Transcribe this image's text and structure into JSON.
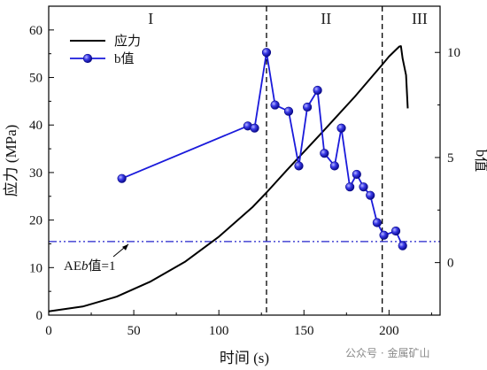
{
  "chart_data": {
    "type": "line",
    "xlabel": "时间 (s)",
    "ylabel_left": "应力 (MPa)",
    "ylabel_right": "b值",
    "xlim": [
      0,
      230
    ],
    "ylim_left": [
      0,
      65
    ],
    "ylim_right": [
      -2.5,
      12.2
    ],
    "x_ticks": [
      0,
      50,
      100,
      150,
      200
    ],
    "y_left_ticks": [
      0,
      10,
      20,
      30,
      40,
      50,
      60
    ],
    "y_right_ticks": [
      0,
      5,
      10
    ],
    "legend": {
      "placement": "top-left",
      "entries": [
        "应力",
        "b值"
      ]
    },
    "colors": {
      "stress": "#000000",
      "bvalue": "#1a1adb",
      "threshold": "#2222cc",
      "divider": "#000000"
    },
    "stages": [
      {
        "label": "I",
        "x": 60
      },
      {
        "label": "II",
        "x": 163
      },
      {
        "label": "III",
        "x": 218
      }
    ],
    "stage_dividers": [
      128,
      196
    ],
    "threshold": {
      "y": 1,
      "axis": "right",
      "label": "AEb值=1",
      "label_parts": [
        "AE",
        "b",
        "值=1"
      ]
    },
    "series": [
      {
        "name": "应力",
        "axis": "left",
        "x": [
          0,
          20,
          40,
          60,
          80,
          100,
          120,
          128,
          140,
          160,
          180,
          196,
          200,
          204,
          206,
          207,
          208,
          210,
          211
        ],
        "values": [
          0.8,
          1.8,
          3.9,
          7.1,
          11.2,
          16.5,
          22.8,
          25.8,
          30.5,
          38.2,
          46.0,
          52.7,
          54.4,
          55.8,
          56.5,
          56.6,
          54.0,
          50.5,
          43.5
        ]
      },
      {
        "name": "b值",
        "axis": "right",
        "x": [
          43,
          117,
          121,
          128,
          133,
          141,
          147,
          152,
          158,
          162,
          168,
          172,
          177,
          181,
          185,
          189,
          193,
          197,
          204,
          208
        ],
        "values": [
          4.0,
          6.5,
          6.4,
          10.0,
          7.5,
          7.2,
          4.6,
          7.4,
          8.2,
          5.2,
          4.6,
          6.4,
          3.6,
          4.2,
          3.6,
          3.2,
          1.9,
          1.3,
          1.5,
          0.8
        ]
      }
    ]
  },
  "watermark": "公众号 · 金属矿山"
}
